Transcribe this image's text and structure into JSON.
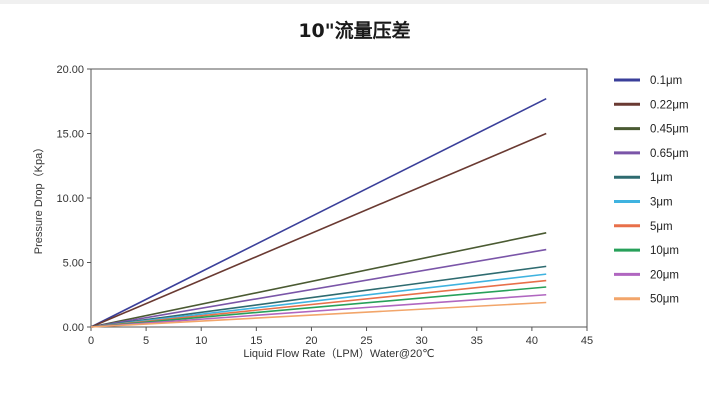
{
  "chart_data": {
    "type": "line",
    "title": "10\"流量压差",
    "xlabel": "Liquid Flow Rate（LPM）Water@20℃",
    "ylabel": "Pressure Drop（Kpa）",
    "xlim": [
      0,
      45
    ],
    "ylim": [
      0,
      20
    ],
    "xticks": [
      "0",
      "5",
      "10",
      "15",
      "20",
      "25",
      "30",
      "35",
      "40",
      "45"
    ],
    "yticks": [
      "0.00",
      "5.00",
      "10.00",
      "15.00",
      "20.00"
    ],
    "grid": false,
    "legend": "right",
    "series": [
      {
        "name": "0.1μm",
        "color": "#3a3f9a",
        "x": [
          0,
          41.3
        ],
        "y": [
          0,
          17.7
        ]
      },
      {
        "name": "0.22μm",
        "color": "#6a3a32",
        "x": [
          0,
          41.3
        ],
        "y": [
          0,
          15.0
        ]
      },
      {
        "name": "0.45μm",
        "color": "#4a5a32",
        "x": [
          0,
          41.3
        ],
        "y": [
          0,
          7.3
        ]
      },
      {
        "name": "0.65μm",
        "color": "#7a55a8",
        "x": [
          0,
          41.3
        ],
        "y": [
          0,
          6.0
        ]
      },
      {
        "name": "1μm",
        "color": "#2e6b70",
        "x": [
          0,
          41.3
        ],
        "y": [
          0,
          4.7
        ]
      },
      {
        "name": "3μm",
        "color": "#3fb3e0",
        "x": [
          0,
          41.3
        ],
        "y": [
          0,
          4.1
        ]
      },
      {
        "name": "5μm",
        "color": "#e8704a",
        "x": [
          0,
          41.3
        ],
        "y": [
          0,
          3.6
        ]
      },
      {
        "name": "10μm",
        "color": "#27a05a",
        "x": [
          0,
          41.3
        ],
        "y": [
          0,
          3.1
        ]
      },
      {
        "name": "20μm",
        "color": "#b066c0",
        "x": [
          0,
          41.3
        ],
        "y": [
          0,
          2.5
        ]
      },
      {
        "name": "50μm",
        "color": "#f2a56a",
        "x": [
          0,
          41.3
        ],
        "y": [
          0,
          1.9
        ]
      }
    ]
  }
}
